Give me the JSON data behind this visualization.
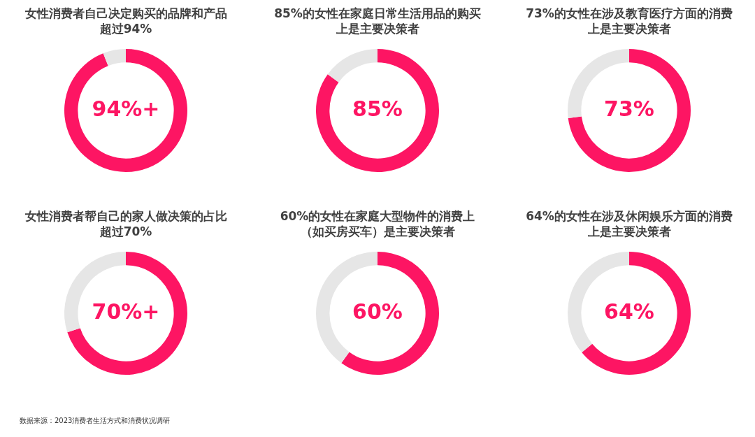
{
  "chart_data": [
    {
      "type": "donut",
      "title": "女性消费者自己决定购买的品牌和产品超过94%",
      "categories": [
        null,
        null
      ],
      "values": [
        94,
        6
      ],
      "colors": [
        "#fd1563",
        "#e6e6e6"
      ],
      "value_labels": [
        "94%+",
        null
      ]
    },
    {
      "type": "donut",
      "title": "85%的女性在家庭日常生活用品的购买上是主要决策者",
      "categories": [
        null,
        null
      ],
      "values": [
        85,
        15
      ],
      "colors": [
        "#fd1563",
        "#e6e6e6"
      ],
      "value_labels": [
        "85%",
        null
      ]
    },
    {
      "type": "donut",
      "title": "73%的女性在涉及教育医疗方面的消费上是主要决策者",
      "categories": [
        null,
        null
      ],
      "values": [
        73,
        27
      ],
      "colors": [
        "#fd1563",
        "#e6e6e6"
      ],
      "value_labels": [
        "73%",
        null
      ]
    },
    {
      "type": "donut",
      "title": "女性消费者帮自己的家人做决策的占比超过70%",
      "categories": [
        null,
        null
      ],
      "values": [
        70,
        30
      ],
      "colors": [
        "#fd1563",
        "#e6e6e6"
      ],
      "value_labels": [
        "70%+",
        null
      ],
      "annotations": [
        "数据来源：2023消费者生活方式和消费状况调研"
      ]
    },
    {
      "type": "donut",
      "title": "60%的女性在家庭大型物件的消费上（如买房买车）是主要决策者",
      "categories": [
        null,
        null
      ],
      "values": [
        60,
        40
      ],
      "colors": [
        "#fd1563",
        "#e6e6e6"
      ],
      "value_labels": [
        "60%",
        null
      ]
    },
    {
      "type": "donut",
      "title": "64%的女性在涉及休闲娱乐方面的消费上是主要决策者",
      "categories": [
        null,
        null
      ],
      "values": [
        64,
        36
      ],
      "colors": [
        "#fd1563",
        "#e6e6e6"
      ],
      "value_labels": [
        "64%",
        null
      ]
    }
  ]
}
